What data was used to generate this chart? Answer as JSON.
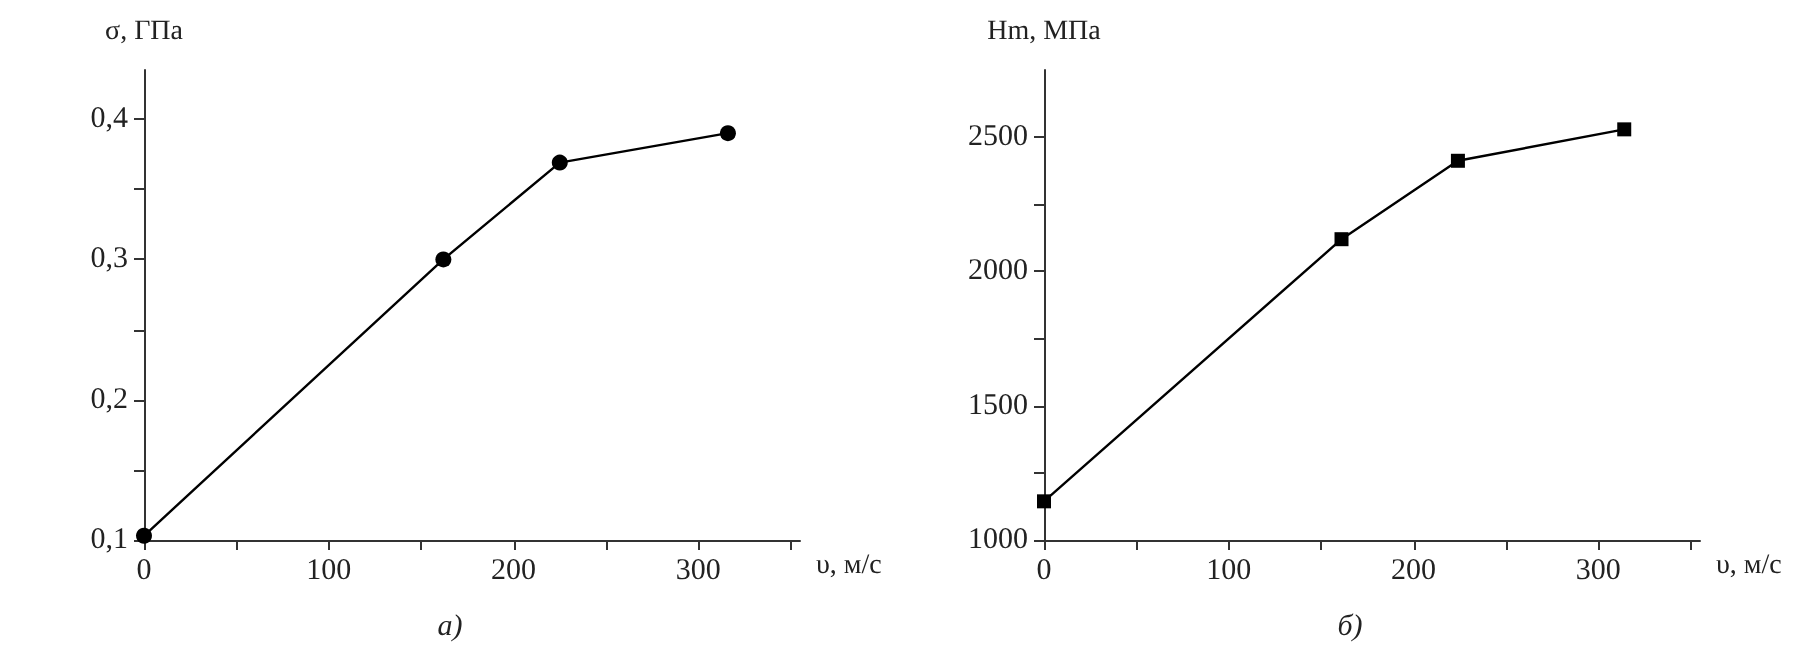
{
  "chart_data": [
    {
      "type": "line",
      "ylabel": "σ, ГПа",
      "xlabel": "υ, м/с",
      "annotations": [
        "а)"
      ],
      "marker": "circle",
      "line_style": "solid",
      "grid": false,
      "x": [
        0,
        162,
        225,
        316
      ],
      "series": [
        {
          "color": "#000000",
          "values": [
            0.103,
            0.3,
            0.369,
            0.39
          ]
        }
      ],
      "xlim": [
        0,
        355
      ],
      "xticks": [
        0,
        {
          "value": 50,
          "label": null
        },
        100,
        {
          "value": 150,
          "label": null
        },
        200,
        {
          "value": 250,
          "label": null
        },
        300,
        {
          "value": 350,
          "label": null
        }
      ],
      "ylim": [
        0.1,
        0.435
      ],
      "yticks": [
        {
          "value": 0.1,
          "label": "0,1"
        },
        {
          "value": 0.15,
          "label": null
        },
        {
          "value": 0.2,
          "label": "0,2"
        },
        {
          "value": 0.25,
          "label": null
        },
        {
          "value": 0.3,
          "label": "0,3"
        },
        {
          "value": 0.35,
          "label": null
        },
        {
          "value": 0.4,
          "label": "0,4"
        }
      ]
    },
    {
      "type": "line",
      "ylabel": "Hm, МПа",
      "xlabel": "υ, м/с",
      "annotations": [
        "б)"
      ],
      "marker": "square",
      "line_style": "solid",
      "grid": false,
      "x": [
        0,
        161,
        224,
        314
      ],
      "series": [
        {
          "color": "#000000",
          "values": [
            1144,
            2120,
            2412,
            2529
          ]
        }
      ],
      "xlim": [
        0,
        355
      ],
      "xticks": [
        0,
        {
          "value": 50,
          "label": null
        },
        100,
        {
          "value": 150,
          "label": null
        },
        200,
        {
          "value": 250,
          "label": null
        },
        300,
        {
          "value": 350,
          "label": null
        }
      ],
      "ylim": [
        1000,
        2750
      ],
      "yticks": [
        1000,
        {
          "value": 1250,
          "label": null
        },
        1500,
        {
          "value": 1750,
          "label": null
        },
        2000,
        {
          "value": 2250,
          "label": null
        },
        2500
      ]
    }
  ]
}
